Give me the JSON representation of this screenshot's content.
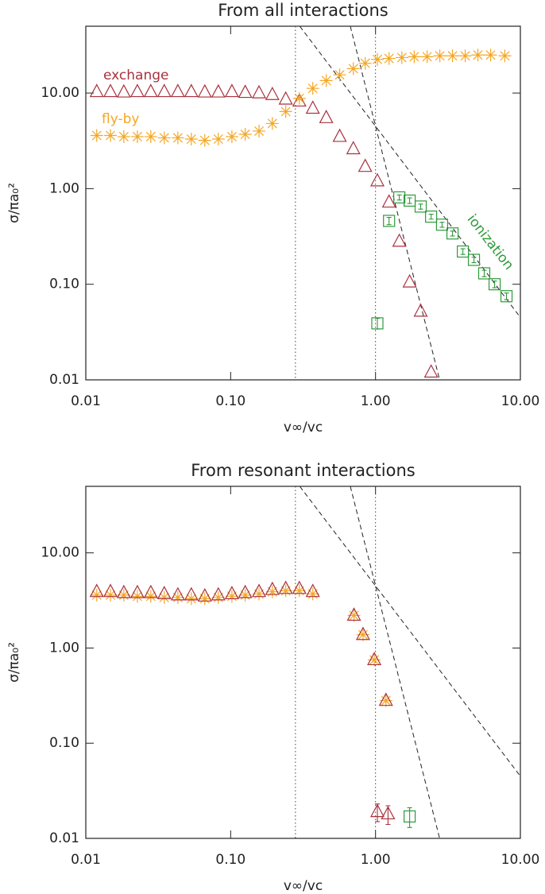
{
  "chart_data": [
    {
      "type": "scatter",
      "title": "From all interactions",
      "x_label": "v∞/vc",
      "y_label": "σ/πa₀²",
      "log_x": true,
      "log_y": true,
      "xlim": [
        0.01,
        10
      ],
      "ylim": [
        0.01,
        50
      ],
      "xticks": [
        0.01,
        {
          "value": 0.1,
          "label": "0.10"
        },
        {
          "value": 1,
          "label": "1.00"
        },
        {
          "value": 10,
          "label": "10.00"
        }
      ],
      "yticks": [
        0.01,
        {
          "value": 0.1,
          "label": "0.10"
        },
        {
          "value": 1,
          "label": "1.00"
        },
        {
          "value": 10,
          "label": "10.00"
        }
      ],
      "series": [
        {
          "name": "exchange",
          "color": "#a8323e",
          "marker": "triangle",
          "x": [
            0.0119,
            0.0148,
            0.0183,
            0.0227,
            0.0281,
            0.0348,
            0.0432,
            0.0535,
            0.0663,
            0.0822,
            0.102,
            0.126,
            0.157,
            0.194,
            0.24,
            0.298,
            0.369,
            0.457,
            0.566,
            0.703,
            0.849,
            1.03,
            1.24,
            1.46,
            1.72,
            2.05,
            2.42
          ],
          "values": [
            10.3,
            10.3,
            10.2,
            10.3,
            10.3,
            10.3,
            10.3,
            10.3,
            10.2,
            10.2,
            10.3,
            10.1,
            10.0,
            9.6,
            8.6,
            8.2,
            6.9,
            5.5,
            3.5,
            2.6,
            1.7,
            1.2,
            0.72,
            0.28,
            0.105,
            0.052,
            0.012
          ]
        },
        {
          "name": "fly-by",
          "color": "#f5a623",
          "marker": "star",
          "x": [
            0.0119,
            0.0148,
            0.0183,
            0.0227,
            0.0281,
            0.0348,
            0.0432,
            0.0535,
            0.0663,
            0.0822,
            0.102,
            0.126,
            0.157,
            0.194,
            0.24,
            0.298,
            0.369,
            0.457,
            0.566,
            0.703,
            0.849,
            1.03,
            1.24,
            1.52,
            1.85,
            2.27,
            2.78,
            3.4,
            4.16,
            5.09,
            6.23,
            7.81
          ],
          "values": [
            3.6,
            3.6,
            3.5,
            3.5,
            3.5,
            3.4,
            3.4,
            3.3,
            3.2,
            3.3,
            3.5,
            3.7,
            4.0,
            4.8,
            6.4,
            8.8,
            11.2,
            13.5,
            15.5,
            18,
            20.5,
            22.5,
            23,
            23.5,
            24,
            24,
            24.5,
            24.5,
            24.5,
            25,
            25,
            24.5
          ]
        },
        {
          "name": "ionization",
          "color": "#2e9a3a",
          "marker": "square",
          "x": [
            1.03,
            1.24,
            1.46,
            1.72,
            2.05,
            2.42,
            2.88,
            3.4,
            4.01,
            4.78,
            5.63,
            6.64,
            8.02
          ],
          "values": [
            0.039,
            0.46,
            0.81,
            0.75,
            0.65,
            0.51,
            0.42,
            0.34,
            0.22,
            0.18,
            0.13,
            0.1,
            0.075
          ],
          "errors": [
            0.005,
            0.04,
            0.05,
            0.05,
            0.04,
            0.03,
            0.025,
            0.02,
            0.015,
            0.012,
            0.01,
            0.008,
            0.006
          ]
        }
      ],
      "dashed_lines": [
        {
          "x": [
            0.3,
            10
          ],
          "y": [
            50,
            0.045
          ]
        },
        {
          "x": [
            0.67,
            2.77
          ],
          "y": [
            50,
            0.01
          ]
        }
      ],
      "dotted_x": [
        0.28,
        1
      ]
    },
    {
      "type": "scatter",
      "title": "From resonant interactions",
      "x_label": "v∞/vc",
      "y_label": "σ/πa₀²",
      "log_x": true,
      "log_y": true,
      "xlim": [
        0.01,
        10
      ],
      "ylim": [
        0.01,
        50
      ],
      "xticks": [
        0.01,
        {
          "value": 0.1,
          "label": "0.10"
        },
        {
          "value": 1,
          "label": "1.00"
        },
        {
          "value": 10,
          "label": "10.00"
        }
      ],
      "yticks": [
        0.01,
        {
          "value": 0.1,
          "label": "0.10"
        },
        {
          "value": 1,
          "label": "1.00"
        },
        {
          "value": 10,
          "label": "10.00"
        }
      ],
      "series": [
        {
          "color": "#f5a623",
          "marker": "star",
          "x": [
            0.0119,
            0.0148,
            0.0183,
            0.0227,
            0.0281,
            0.0348,
            0.0432,
            0.0535,
            0.0663,
            0.0822,
            0.102,
            0.126,
            0.157,
            0.194,
            0.24,
            0.298,
            0.369,
            0.71,
            0.82,
            0.98,
            1.18
          ],
          "values": [
            3.6,
            3.6,
            3.6,
            3.5,
            3.5,
            3.4,
            3.4,
            3.3,
            3.3,
            3.4,
            3.5,
            3.6,
            3.7,
            3.9,
            4.0,
            4.0,
            3.7,
            2.2,
            1.38,
            0.75,
            0.28
          ]
        },
        {
          "color": "#a8323e",
          "marker": "triangle",
          "x": [
            0.0119,
            0.0148,
            0.0183,
            0.0227,
            0.0281,
            0.0348,
            0.0432,
            0.0535,
            0.0663,
            0.0822,
            0.102,
            0.126,
            0.157,
            0.194,
            0.24,
            0.298,
            0.369,
            0.71,
            0.82,
            0.98,
            1.18,
            1.03,
            1.22
          ],
          "values": [
            3.9,
            3.9,
            3.8,
            3.8,
            3.8,
            3.7,
            3.6,
            3.6,
            3.5,
            3.6,
            3.7,
            3.8,
            3.9,
            4.1,
            4.2,
            4.2,
            3.9,
            2.2,
            1.38,
            0.75,
            0.28,
            0.019,
            0.018
          ],
          "errors": [
            null,
            null,
            null,
            null,
            null,
            null,
            null,
            null,
            null,
            null,
            null,
            null,
            null,
            null,
            null,
            null,
            null,
            null,
            null,
            null,
            null,
            0.004,
            0.004
          ]
        },
        {
          "color": "#2e9a3a",
          "marker": "square",
          "x": [
            1.72
          ],
          "values": [
            0.017
          ],
          "errors": [
            0.004
          ]
        }
      ],
      "dashed_lines": [
        {
          "x": [
            0.3,
            10
          ],
          "y": [
            50,
            0.045
          ]
        },
        {
          "x": [
            0.67,
            2.77
          ],
          "y": [
            50,
            0.01
          ]
        }
      ],
      "dotted_x": [
        0.28,
        1
      ]
    }
  ]
}
